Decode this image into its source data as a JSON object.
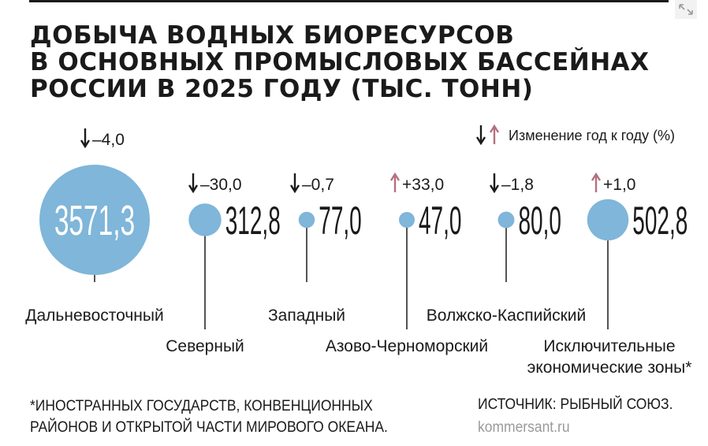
{
  "title": "ДОБЫЧА ВОДНЫХ БИОРЕСУРСОВ\nВ ОСНОВНЫХ ПРОМЫСЛОВЫХ БАССЕЙНАХ\nРОССИИ В 2025 ГОДУ (ТЫС. ТОНН)",
  "footnote": "*ИНОСТРАННЫХ ГОСУДАРСТВ, КОНВЕНЦИОННЫХ\n  РАЙОНОВ И ОТКРЫТОЙ ЧАСТИ МИРОВОГО ОКЕАНА.",
  "source": "ИСТОЧНИК: РЫБНЫЙ СОЮЗ.",
  "site": "kommersant.ru",
  "colors": {
    "bubble": "#7fb6d9",
    "bubble_text": "#ffffff",
    "text": "#1a1a1a",
    "arrow_down": "#1a1a1a",
    "arrow_up": "#b5717d",
    "site": "#9a9a9a"
  },
  "icons": {
    "down": "arrow-down-icon",
    "up": "arrow-up-icon",
    "corner": "expand-icon"
  },
  "chart_data": {
    "type": "bubble",
    "title": "ДОБЫЧА ВОДНЫХ БИОРЕСУРСОВ В ОСНОВНЫХ ПРОМЫСЛОВЫХ БАССЕЙНАХ РОССИИ В 2025 ГОДУ (ТЫС. ТОНН)",
    "legend": {
      "label": "Изменение год к году (%)",
      "placement": "top-right"
    },
    "value_unit": "тыс. тонн",
    "categories": [
      "Дальневосточный",
      "Северный",
      "Западный",
      "Азово-Черноморский",
      "Волжско-Каспийский",
      "Исключительные\nэкономические зоны*"
    ],
    "values": [
      3571.3,
      312.8,
      77.0,
      47.0,
      80.0,
      502.8
    ],
    "value_labels": [
      "3571,3",
      "312,8",
      "77,0",
      "47,0",
      "80,0",
      "502,8"
    ],
    "changes": [
      -4.0,
      -30.0,
      -0.7,
      33.0,
      -1.8,
      1.0
    ],
    "change_labels": [
      "–4,0",
      "–30,0",
      "–0,7",
      "+33,0",
      "–1,8",
      "+1,0"
    ],
    "label_level": [
      "upper",
      "lower",
      "upper",
      "lower",
      "upper",
      "lower"
    ]
  }
}
